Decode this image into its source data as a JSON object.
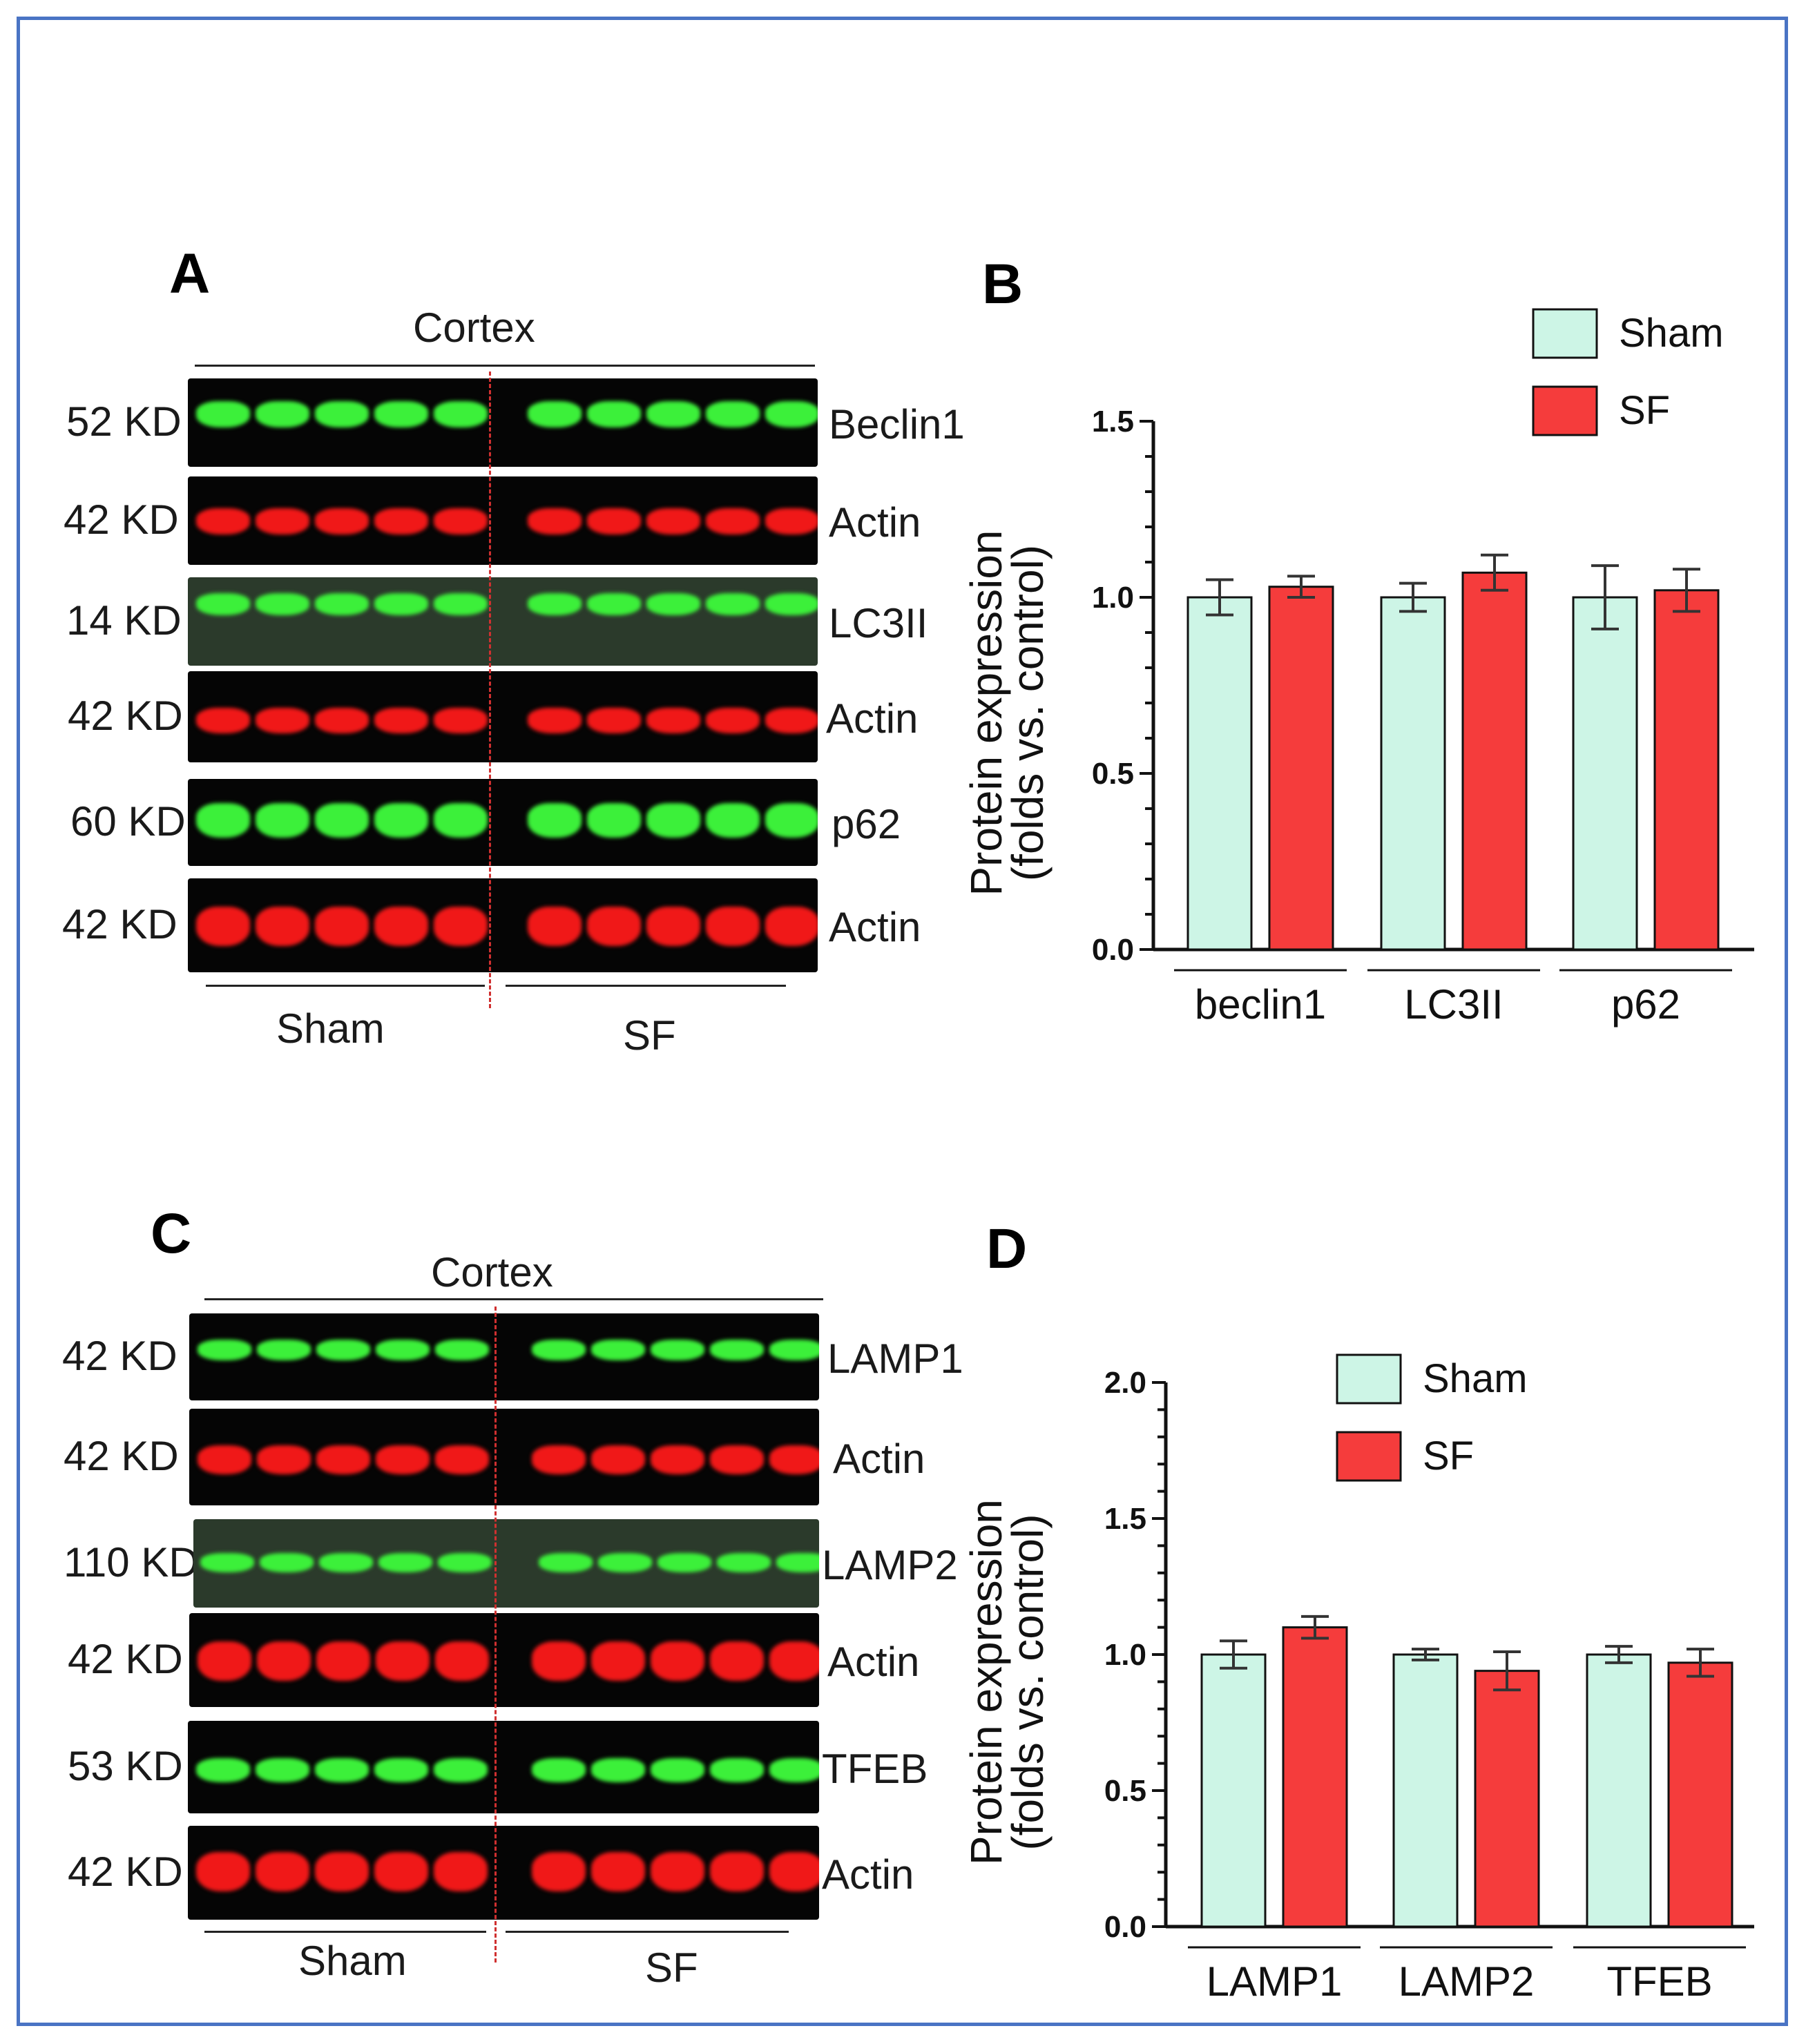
{
  "colors": {
    "sham": "#cdf5e6",
    "sf": "#f53c3c",
    "border": "#4a74c4",
    "green_band": "#3cf03a",
    "red_band": "#f01818"
  },
  "panel_a": {
    "letter": "A",
    "region": "Cortex",
    "groups": [
      "Sham",
      "SF"
    ],
    "rows": [
      {
        "kd": "52 KD",
        "protein": "Beclin1",
        "color": "green"
      },
      {
        "kd": "42 KD",
        "protein": "Actin",
        "color": "red"
      },
      {
        "kd": "14 KD",
        "protein": "LC3II",
        "color": "green"
      },
      {
        "kd": "42 KD",
        "protein": "Actin",
        "color": "red"
      },
      {
        "kd": "60 KD",
        "protein": "p62",
        "color": "green"
      },
      {
        "kd": "42 KD",
        "protein": "Actin",
        "color": "red"
      }
    ]
  },
  "panel_c": {
    "letter": "C",
    "region": "Cortex",
    "groups": [
      "Sham",
      "SF"
    ],
    "rows": [
      {
        "kd": "42 KD",
        "protein": "LAMP1",
        "color": "green"
      },
      {
        "kd": "42 KD",
        "protein": "Actin",
        "color": "red"
      },
      {
        "kd": "110 KD",
        "protein": "LAMP2",
        "color": "green"
      },
      {
        "kd": "42 KD",
        "protein": "Actin",
        "color": "red"
      },
      {
        "kd": "53 KD",
        "protein": "TFEB",
        "color": "green"
      },
      {
        "kd": "42 KD",
        "protein": "Actin",
        "color": "red"
      }
    ]
  },
  "chart_data": [
    {
      "panel": "B",
      "type": "bar",
      "categories": [
        "beclin1",
        "LC3II",
        "p62"
      ],
      "series": [
        {
          "name": "Sham",
          "values": [
            1.0,
            1.0,
            1.0
          ],
          "errors": [
            0.05,
            0.04,
            0.09
          ]
        },
        {
          "name": "SF",
          "values": [
            1.03,
            1.07,
            1.02
          ],
          "errors": [
            0.03,
            0.05,
            0.06
          ]
        }
      ],
      "ylabel_line1": "Protein expression",
      "ylabel_line2": "(folds vs. control)",
      "ylim": [
        0,
        1.5
      ],
      "yticks": [
        "0.0",
        "0.5",
        "1.0",
        "1.5"
      ],
      "ytick_values": [
        0,
        0.5,
        1.0,
        1.5
      ],
      "legend": "top-right",
      "grid": false
    },
    {
      "panel": "D",
      "type": "bar",
      "categories": [
        "LAMP1",
        "LAMP2",
        "TFEB"
      ],
      "series": [
        {
          "name": "Sham",
          "values": [
            1.0,
            1.0,
            1.0
          ],
          "errors": [
            0.05,
            0.02,
            0.03
          ]
        },
        {
          "name": "SF",
          "values": [
            1.1,
            0.94,
            0.97
          ],
          "errors": [
            0.04,
            0.07,
            0.05
          ]
        }
      ],
      "ylabel_line1": "Protein expression",
      "ylabel_line2": "(folds vs. control)",
      "ylim": [
        0,
        2.0
      ],
      "yticks": [
        "0.0",
        "0.5",
        "1.0",
        "1.5",
        "2.0"
      ],
      "ytick_values": [
        0,
        0.5,
        1.0,
        1.5,
        2.0
      ],
      "legend": "top-center",
      "grid": false
    }
  ]
}
